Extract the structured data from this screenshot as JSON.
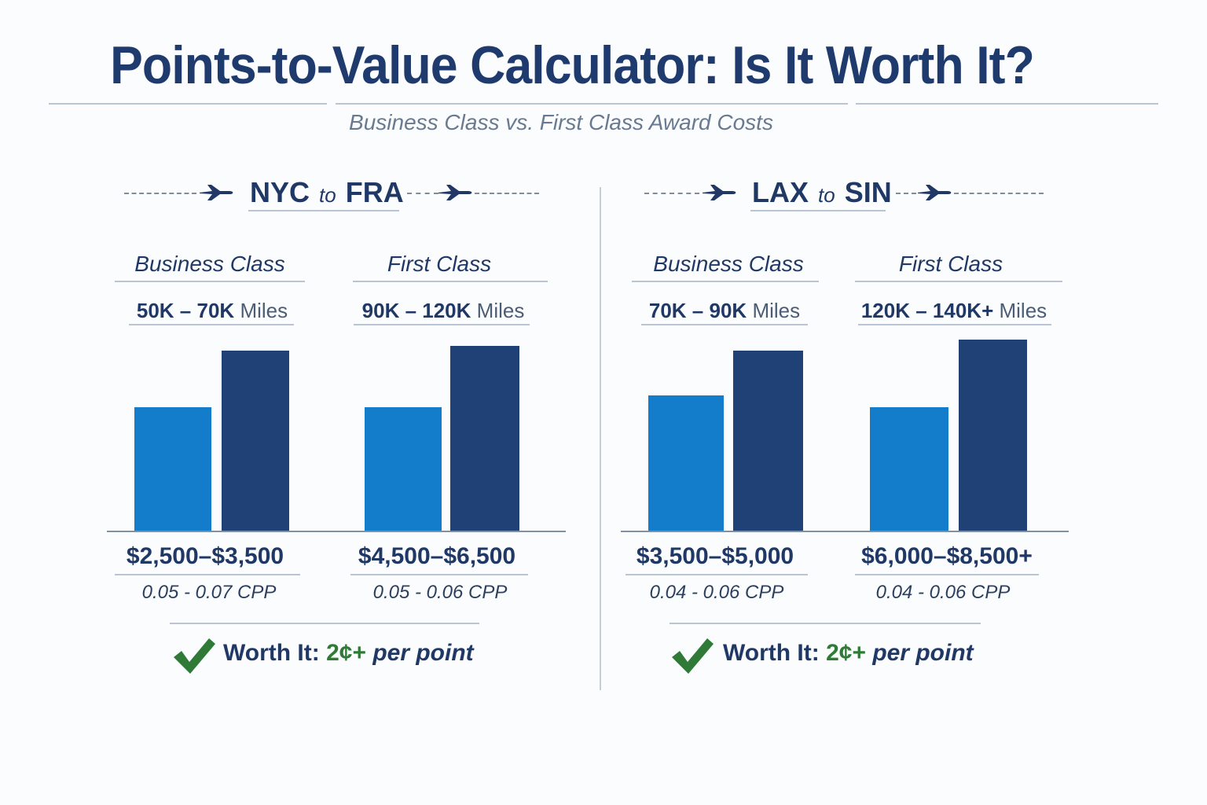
{
  "title": "Points-to-Value Calculator: Is It Worth It?",
  "subtitle": "Business Class vs. First Class Award Costs",
  "colors": {
    "title": "#1f3b6e",
    "bar_light": "#137ccb",
    "bar_dark": "#1f4175",
    "check": "#2f7a37"
  },
  "icons": {
    "route": "airplane-icon",
    "verdict": "checkmark-icon"
  },
  "units": {
    "miles": "Miles",
    "to": "to"
  },
  "verdict": {
    "label": "Worth It:",
    "value": "2¢+",
    "suffix": "per point"
  },
  "chart_data": [
    {
      "type": "bar",
      "route": {
        "from": "NYC",
        "to": "FRA"
      },
      "groups": [
        {
          "label": "Business Class",
          "miles_range": "50K – 70K",
          "price_range": "$2,500–$3,500",
          "cpp": "0.05 - 0.07 CPP",
          "values": [
            0.55,
            0.8
          ]
        },
        {
          "label": "First Class",
          "miles_range": "90K – 120K",
          "price_range": "$4,500–$6,500",
          "cpp": "0.05 - 0.06 CPP",
          "values": [
            0.55,
            0.82
          ]
        }
      ]
    },
    {
      "type": "bar",
      "route": {
        "from": "LAX",
        "to": "SIN"
      },
      "groups": [
        {
          "label": "Business Class",
          "miles_range": "70K – 90K",
          "price_range": "$3,500–$5,000",
          "cpp": "0.04 - 0.06 CPP",
          "values": [
            0.6,
            0.8
          ]
        },
        {
          "label": "First Class",
          "miles_range": "120K – 140K+",
          "price_range": "$6,000–$8,500+",
          "cpp": "0.04 - 0.06 CPP",
          "values": [
            0.55,
            0.85
          ]
        }
      ]
    }
  ]
}
